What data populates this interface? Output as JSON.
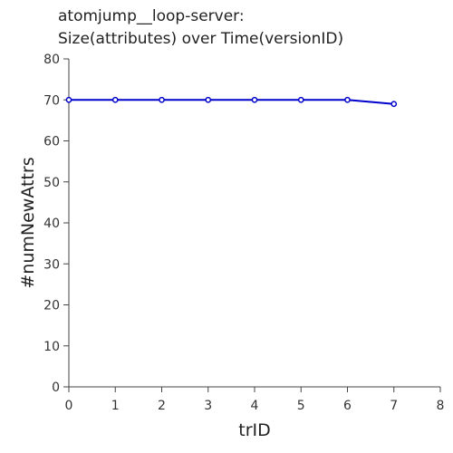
{
  "chart_data": {
    "type": "line",
    "title_lines": [
      "atomjump__loop-server:",
      "Size(attributes) over Time(versionID)"
    ],
    "xlabel": "trID",
    "ylabel": "#numNewAttrs",
    "xlim": [
      0,
      8
    ],
    "ylim": [
      0,
      80
    ],
    "xticks": [
      0,
      1,
      2,
      3,
      4,
      5,
      6,
      7,
      8
    ],
    "yticks": [
      0,
      10,
      20,
      30,
      40,
      50,
      60,
      70,
      80
    ],
    "grid": false,
    "legend": "none",
    "series": [
      {
        "x": [
          0,
          1,
          2,
          3,
          4,
          5,
          6,
          7
        ],
        "values": [
          70,
          70,
          70,
          70,
          70,
          70,
          70,
          69
        ],
        "color": "#0000cc"
      }
    ]
  }
}
